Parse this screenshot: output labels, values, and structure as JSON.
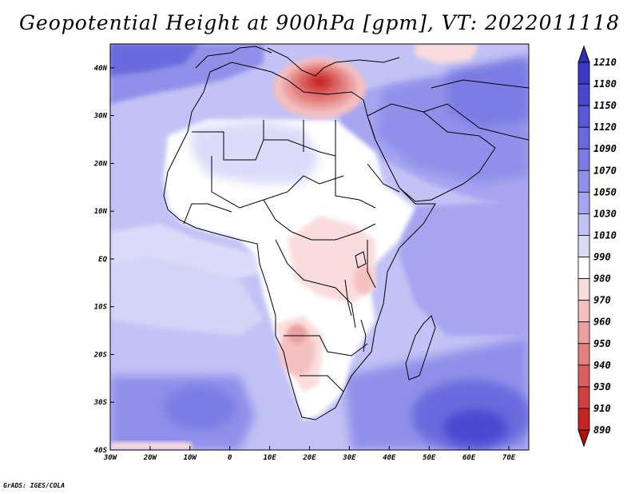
{
  "title": "Geopotential Height at 900hPa [gpm], VT: 2022011118",
  "credit": "GrADS: IGES/COLA",
  "map": {
    "lon_range": [
      -30,
      75
    ],
    "lat_range": [
      -40,
      45
    ],
    "lat_labels": [
      "40N",
      "30N",
      "20N",
      "10N",
      "EQ",
      "10S",
      "20S",
      "30S",
      "40S"
    ],
    "lon_labels": [
      "30W",
      "20W",
      "10W",
      "0",
      "10E",
      "20E",
      "30E",
      "40E",
      "50E",
      "60E",
      "70E"
    ]
  },
  "colorbar": {
    "levels": [
      "1210",
      "1180",
      "1150",
      "1120",
      "1090",
      "1070",
      "1050",
      "1030",
      "1010",
      "990",
      "980",
      "970",
      "960",
      "950",
      "940",
      "930",
      "910",
      "890"
    ],
    "colors": [
      "#3030b4",
      "#3a3ac4",
      "#4848d0",
      "#5858d8",
      "#6a6ade",
      "#7c7ce4",
      "#9090ea",
      "#a6a6f0",
      "#c2c2f6",
      "#dcdcfa",
      "#ffffff",
      "#fadcdc",
      "#f4c0c0",
      "#eca0a0",
      "#e48080",
      "#da6060",
      "#d04040",
      "#c42424",
      "#b01010"
    ]
  }
}
